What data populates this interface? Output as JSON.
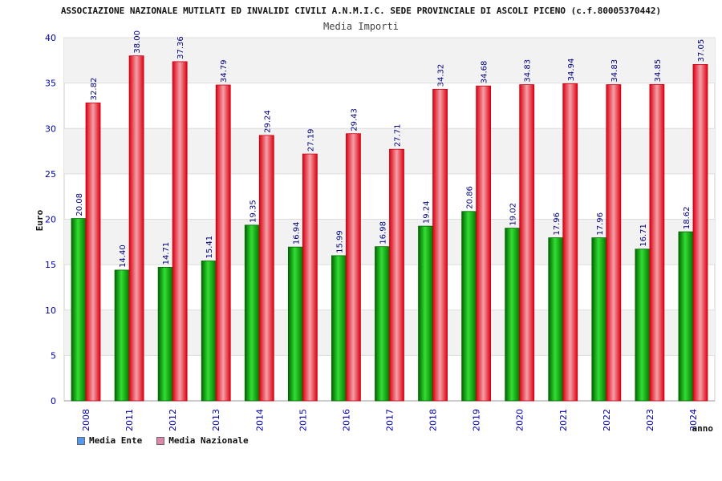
{
  "chart_data": {
    "type": "bar",
    "title": "ASSOCIAZIONE NAZIONALE MUTILATI ED INVALIDI CIVILI A.N.M.I.C. SEDE PROVINCIALE DI ASCOLI PICENO (c.f.80005370442)",
    "subtitle": "Media Importi",
    "ylabel": "Euro",
    "xlabel": "anno",
    "ylim": [
      0,
      40
    ],
    "yticks": [
      0,
      5,
      10,
      15,
      20,
      25,
      30,
      35,
      40
    ],
    "grid": true,
    "legend_position": "bottom-left",
    "categories": [
      "2008",
      "2011",
      "2012",
      "2013",
      "2014",
      "2015",
      "2016",
      "2017",
      "2018",
      "2019",
      "2020",
      "2021",
      "2022",
      "2023",
      "2024"
    ],
    "series": [
      {
        "name": "Media Ente",
        "color": "#00aa00",
        "legend_color": "#5599ee",
        "values": [
          20.08,
          14.4,
          14.71,
          15.41,
          19.35,
          16.94,
          15.99,
          16.98,
          19.24,
          20.86,
          19.02,
          17.96,
          17.96,
          16.71,
          18.62
        ],
        "labels": [
          "20.08",
          "14.40",
          "14.71",
          "15.41",
          "19.35",
          "16.94",
          "15.99",
          "16.98",
          "19.24",
          "20.86",
          "19.02",
          "17.96",
          "17.96",
          "16.71",
          "18.62"
        ]
      },
      {
        "name": "Media Nazionale",
        "color": "#ee1122",
        "legend_color": "#dd88aa",
        "values": [
          32.82,
          38.0,
          37.36,
          34.79,
          29.24,
          27.19,
          29.43,
          27.71,
          34.32,
          34.68,
          34.83,
          34.94,
          34.83,
          34.85,
          37.05
        ],
        "labels": [
          "32.82",
          "38.00",
          "37.36",
          "34.79",
          "29.24",
          "27.19",
          "29.43",
          "27.71",
          "34.32",
          "34.68",
          "34.83",
          "34.94",
          "34.83",
          "34.85",
          "37.05"
        ]
      }
    ]
  }
}
